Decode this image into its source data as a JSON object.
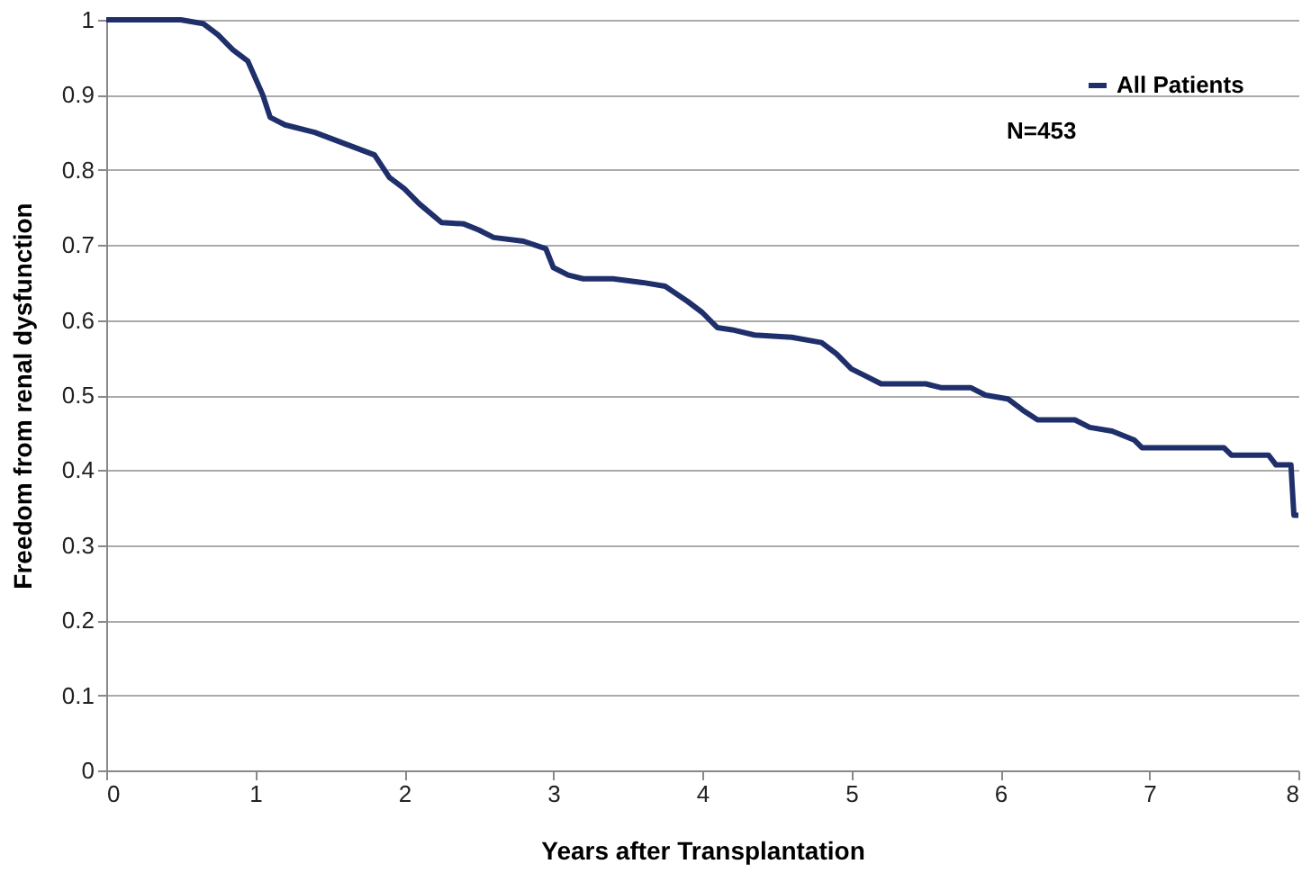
{
  "chart_data": {
    "type": "line",
    "xlabel": "Years after Transplantation",
    "ylabel": "Freedom from renal dysfunction",
    "xlim": [
      0,
      8
    ],
    "xticks": [
      0,
      1,
      2,
      3,
      4,
      5,
      6,
      7,
      8
    ],
    "ylim": [
      0,
      1
    ],
    "yticks": [
      0,
      0.1,
      0.2,
      0.3,
      0.4,
      0.5,
      0.6,
      0.7,
      0.8,
      0.9,
      1
    ],
    "grid": "y",
    "legend": "top right",
    "marker": "none",
    "line_style": "solid",
    "annotations": [
      "N=453"
    ],
    "series": [
      {
        "name": "All Patients",
        "color": "#1f2f6b",
        "x": [
          0,
          0.5,
          0.65,
          0.75,
          0.85,
          0.95,
          1.05,
          1.1,
          1.2,
          1.4,
          1.6,
          1.8,
          1.9,
          2.0,
          2.1,
          2.25,
          2.4,
          2.5,
          2.6,
          2.8,
          2.95,
          3.0,
          3.1,
          3.2,
          3.4,
          3.6,
          3.75,
          3.9,
          4.0,
          4.1,
          4.2,
          4.35,
          4.6,
          4.8,
          4.9,
          5.0,
          5.1,
          5.2,
          5.5,
          5.6,
          5.8,
          5.9,
          6.05,
          6.15,
          6.25,
          6.5,
          6.6,
          6.75,
          6.9,
          6.95,
          7.5,
          7.55,
          7.8,
          7.85,
          7.95,
          7.97,
          8.0
        ],
        "values": [
          1,
          1,
          0.995,
          0.98,
          0.96,
          0.945,
          0.9,
          0.87,
          0.86,
          0.85,
          0.835,
          0.82,
          0.79,
          0.775,
          0.755,
          0.73,
          0.728,
          0.72,
          0.71,
          0.705,
          0.695,
          0.67,
          0.66,
          0.655,
          0.655,
          0.65,
          0.645,
          0.625,
          0.61,
          0.59,
          0.587,
          0.58,
          0.577,
          0.57,
          0.555,
          0.535,
          0.525,
          0.515,
          0.515,
          0.51,
          0.51,
          0.5,
          0.495,
          0.48,
          0.467,
          0.467,
          0.457,
          0.452,
          0.44,
          0.43,
          0.43,
          0.42,
          0.42,
          0.407,
          0.407,
          0.34,
          0.34
        ]
      }
    ]
  }
}
